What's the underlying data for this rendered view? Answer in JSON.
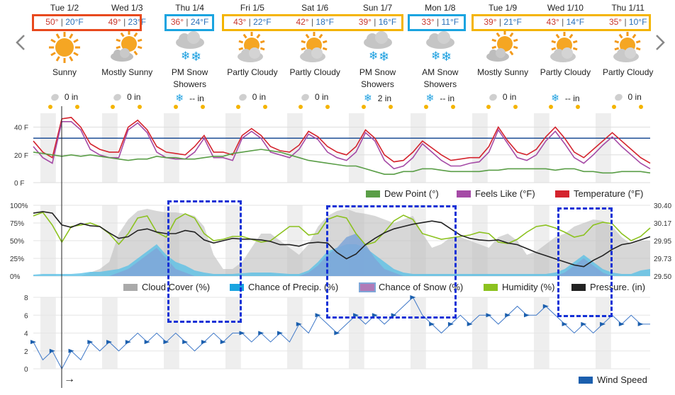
{
  "days": [
    {
      "date": "Tue 1/2",
      "hi": "50°",
      "lo": "20°F",
      "condition": "Sunny",
      "icon": "sun-icon",
      "precip_icon": "rain-drop-icon",
      "precip": "0 in",
      "box": "orange"
    },
    {
      "date": "Wed 1/3",
      "hi": "49°",
      "lo": "23°F",
      "condition": "Mostly Sunny",
      "icon": "mostly-sunny-icon",
      "precip_icon": "rain-drop-icon",
      "precip": "0 in",
      "box": "orange"
    },
    {
      "date": "Thu 1/4",
      "hi": "36°",
      "lo": "24°F",
      "condition": "PM Snow Showers",
      "icon": "snow-cloud-icon",
      "precip_icon": "snowflake-icon",
      "precip": "-- in",
      "box": "blue"
    },
    {
      "date": "Fri 1/5",
      "hi": "43°",
      "lo": "22°F",
      "condition": "Partly Cloudy",
      "icon": "partly-cloudy-icon",
      "precip_icon": "rain-drop-icon",
      "precip": "0 in",
      "box": "yellow"
    },
    {
      "date": "Sat 1/6",
      "hi": "42°",
      "lo": "18°F",
      "condition": "Partly Cloudy",
      "icon": "partly-cloudy-icon",
      "precip_icon": "rain-drop-icon",
      "precip": "0 in",
      "box": "yellow"
    },
    {
      "date": "Sun 1/7",
      "hi": "39°",
      "lo": "16°F",
      "condition": "PM Snow Showers",
      "icon": "snow-cloud-icon",
      "precip_icon": "snowflake-icon",
      "precip": "2 in",
      "box": "yellow"
    },
    {
      "date": "Mon 1/8",
      "hi": "33°",
      "lo": "11°F",
      "condition": "AM Snow Showers",
      "icon": "snow-cloud-icon",
      "precip_icon": "snowflake-icon",
      "precip": "-- in",
      "box": "blue"
    },
    {
      "date": "Tue 1/9",
      "hi": "39°",
      "lo": "21°F",
      "condition": "Mostly Sunny",
      "icon": "mostly-sunny-icon",
      "precip_icon": "rain-drop-icon",
      "precip": "0 in",
      "box": "yellow"
    },
    {
      "date": "Wed 1/10",
      "hi": "43°",
      "lo": "14°F",
      "condition": "Partly Cloudy",
      "icon": "partly-cloudy-icon",
      "precip_icon": "snowflake-icon",
      "precip": "-- in",
      "box": "yellow"
    },
    {
      "date": "Thu 1/11",
      "hi": "35°",
      "lo": "10°F",
      "condition": "Partly Cloudy",
      "icon": "partly-cloudy-icon",
      "precip_icon": "rain-drop-icon",
      "precip": "0 in",
      "box": "yellow"
    }
  ],
  "temp_sep": "|",
  "colors": {
    "orange": "#e8491d",
    "blue": "#1aa4e0",
    "yellow": "#f4b400",
    "dashed": "#1431d6",
    "temperature": "#d4232d",
    "feels_like": "#a54aa6",
    "dew_point": "#5a9e47",
    "freeze_line": "#1f4f96",
    "cloud": "#c8c8c8",
    "precip": "#5bc0e6",
    "snow": "#7fa6d8",
    "humidity": "#8cc21f",
    "pressure": "#222222",
    "wind": "#3f78c8"
  },
  "chart_data": [
    {
      "type": "line",
      "x_label": "",
      "y_ticks": [
        "40 F",
        "20 F",
        "0 F"
      ],
      "ylim": [
        0,
        50
      ],
      "freezing_line": 32,
      "legend": [
        "Dew Point (°)",
        "Feels Like (°F)",
        "Temperature (°F)"
      ],
      "series": [
        {
          "name": "Temperature (°F)",
          "values": [
            30,
            22,
            18,
            46,
            47,
            40,
            28,
            24,
            22,
            22,
            40,
            45,
            38,
            26,
            22,
            21,
            20,
            26,
            34,
            22,
            22,
            20,
            34,
            39,
            34,
            26,
            23,
            22,
            27,
            37,
            33,
            26,
            22,
            20,
            26,
            38,
            32,
            20,
            15,
            16,
            22,
            30,
            25,
            20,
            16,
            17,
            18,
            18,
            26,
            40,
            30,
            22,
            20,
            24,
            33,
            40,
            32,
            22,
            18,
            24,
            30,
            36,
            30,
            24,
            18,
            14
          ]
        },
        {
          "name": "Feels Like (°F)",
          "values": [
            26,
            18,
            14,
            44,
            44,
            38,
            24,
            20,
            18,
            18,
            38,
            43,
            36,
            22,
            18,
            17,
            17,
            22,
            32,
            18,
            18,
            16,
            32,
            37,
            32,
            22,
            20,
            18,
            24,
            35,
            31,
            22,
            18,
            16,
            22,
            36,
            30,
            16,
            10,
            12,
            18,
            28,
            22,
            16,
            12,
            12,
            14,
            15,
            22,
            38,
            28,
            18,
            16,
            20,
            30,
            37,
            28,
            18,
            14,
            20,
            27,
            33,
            26,
            20,
            14,
            10
          ]
        },
        {
          "name": "Dew Point (°)",
          "values": [
            22,
            21,
            20,
            19,
            20,
            19,
            20,
            19,
            18,
            17,
            16,
            17,
            17,
            19,
            18,
            18,
            17,
            17,
            18,
            19,
            19,
            21,
            22,
            23,
            24,
            23,
            22,
            20,
            18,
            16,
            15,
            14,
            13,
            12,
            12,
            10,
            8,
            6,
            6,
            8,
            8,
            10,
            10,
            9,
            8,
            8,
            8,
            8,
            9,
            9,
            10,
            10,
            10,
            10,
            10,
            9,
            10,
            10,
            8,
            8,
            7,
            7,
            8,
            8,
            8,
            7
          ]
        }
      ]
    },
    {
      "type": "area",
      "y_ticks_left": [
        "100%",
        "75%",
        "50%",
        "25%",
        "0%"
      ],
      "y_ticks_right": [
        "30.40",
        "30.17",
        "29.95",
        "29.73",
        "29.50"
      ],
      "ylim_left": [
        0,
        100
      ],
      "ylim_right": [
        29.5,
        30.4
      ],
      "legend": [
        "Cloud Cover (%)",
        "Chance of Precip. (%)",
        "Chance of Snow (%)",
        "Humidity (%)",
        "Pressure. (in)"
      ],
      "series": [
        {
          "name": "Cloud Cover (%)",
          "values": [
            0,
            0,
            0,
            0,
            0,
            0,
            5,
            10,
            20,
            60,
            80,
            92,
            95,
            92,
            90,
            90,
            88,
            85,
            70,
            30,
            10,
            10,
            20,
            40,
            60,
            60,
            50,
            40,
            30,
            45,
            70,
            85,
            92,
            95,
            90,
            88,
            85,
            80,
            75,
            80,
            85,
            60,
            40,
            45,
            55,
            55,
            50,
            45,
            40,
            55,
            60,
            50,
            30,
            35,
            45,
            55,
            60,
            70,
            75,
            80,
            78,
            70,
            55,
            45,
            50,
            50
          ]
        },
        {
          "name": "Chance of Precip. (%)",
          "values": [
            2,
            3,
            3,
            3,
            3,
            4,
            6,
            6,
            8,
            10,
            15,
            25,
            35,
            45,
            30,
            20,
            15,
            8,
            5,
            3,
            3,
            3,
            4,
            5,
            5,
            5,
            4,
            3,
            3,
            8,
            20,
            35,
            40,
            45,
            45,
            40,
            30,
            20,
            10,
            5,
            3,
            3,
            3,
            3,
            3,
            3,
            3,
            3,
            3,
            3,
            3,
            3,
            3,
            3,
            3,
            5,
            10,
            20,
            30,
            20,
            10,
            5,
            3,
            3,
            8,
            10
          ]
        },
        {
          "name": "Chance of Snow (%)",
          "values": [
            0,
            0,
            0,
            0,
            0,
            0,
            0,
            0,
            0,
            5,
            10,
            20,
            30,
            40,
            25,
            10,
            5,
            0,
            0,
            0,
            0,
            0,
            0,
            0,
            0,
            0,
            0,
            0,
            0,
            5,
            15,
            30,
            40,
            55,
            60,
            45,
            25,
            10,
            5,
            0,
            0,
            0,
            0,
            0,
            0,
            0,
            0,
            0,
            0,
            0,
            0,
            0,
            0,
            0,
            0,
            0,
            5,
            15,
            25,
            15,
            5,
            0,
            0,
            0,
            0,
            0
          ]
        },
        {
          "name": "Humidity (%)",
          "values": [
            85,
            90,
            72,
            48,
            70,
            72,
            75,
            70,
            60,
            45,
            60,
            82,
            85,
            62,
            55,
            80,
            88,
            82,
            60,
            50,
            52,
            56,
            56,
            52,
            48,
            50,
            60,
            70,
            70,
            58,
            60,
            80,
            85,
            82,
            60,
            44,
            48,
            62,
            78,
            86,
            80,
            60,
            56,
            52,
            54,
            56,
            58,
            62,
            60,
            48,
            46,
            52,
            62,
            70,
            72,
            68,
            62,
            55,
            58,
            72,
            76,
            74,
            60,
            50,
            56,
            68
          ]
        },
        {
          "name": "Pressure. (in)",
          "values": [
            30.3,
            30.32,
            30.3,
            30.15,
            30.12,
            30.17,
            30.14,
            30.13,
            30.05,
            29.98,
            30.0,
            30.08,
            30.1,
            30.06,
            30.04,
            30.04,
            30.08,
            30.06,
            29.96,
            29.92,
            29.95,
            29.98,
            29.97,
            29.97,
            29.96,
            29.94,
            29.9,
            29.9,
            29.88,
            29.92,
            29.93,
            29.92,
            29.8,
            29.72,
            29.78,
            29.9,
            29.98,
            30.05,
            30.1,
            30.13,
            30.16,
            30.18,
            30.2,
            30.18,
            30.1,
            30.02,
            29.98,
            29.96,
            29.95,
            29.96,
            29.92,
            29.9,
            29.85,
            29.8,
            29.76,
            29.72,
            29.68,
            29.64,
            29.62,
            29.7,
            29.76,
            29.84,
            29.9,
            29.92,
            29.96,
            30.0
          ]
        }
      ]
    },
    {
      "type": "line",
      "y_ticks": [
        "8",
        "6",
        "4",
        "2",
        "0"
      ],
      "ylim": [
        0,
        8
      ],
      "legend": [
        "Wind Speed"
      ],
      "series": [
        {
          "name": "Wind Speed",
          "values": [
            3,
            1,
            2,
            0,
            2,
            1,
            3,
            2,
            3,
            2,
            3,
            4,
            3,
            4,
            3,
            4,
            3,
            2,
            3,
            4,
            3,
            4,
            4,
            3,
            4,
            3,
            4,
            3,
            5,
            4,
            6,
            5,
            4,
            5,
            6,
            5,
            6,
            5,
            6,
            7,
            8,
            6,
            5,
            4,
            5,
            6,
            5,
            6,
            6,
            5,
            6,
            7,
            6,
            6,
            7,
            6,
            5,
            4,
            5,
            4,
            5,
            6,
            5,
            6,
            5,
            5
          ]
        }
      ]
    }
  ],
  "wind_marker": "→"
}
